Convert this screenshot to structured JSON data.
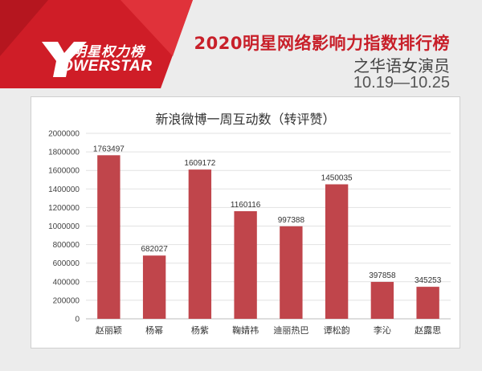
{
  "header": {
    "logo_cn": "明星权力榜",
    "logo_en": "OWERSTAR",
    "title": "2020明星网络影响力指数排行榜",
    "subtitle": "之华语女演员",
    "date_range": "10.19—10.25"
  },
  "colors": {
    "bar": "#c0454b",
    "accent": "#c8202a",
    "banner": "#cf1d27"
  },
  "chart_data": {
    "type": "bar",
    "title": "新浪微博一周互动数（转评赞）",
    "categories": [
      "赵丽颖",
      "杨幂",
      "杨紫",
      "鞠婧祎",
      "迪丽热巴",
      "谭松韵",
      "李沁",
      "赵露思"
    ],
    "values": [
      1763497,
      682027,
      1609172,
      1160116,
      997388,
      1450035,
      397858,
      345253
    ],
    "data_labels": [
      "1763497",
      "682027",
      "1609172",
      "1160116",
      "997388",
      "1450035",
      "397858",
      "345253"
    ],
    "ylim": [
      0,
      2000000
    ],
    "yticks": [
      "0",
      "200000",
      "400000",
      "600000",
      "800000",
      "1000000",
      "1200000",
      "1400000",
      "1600000",
      "1800000",
      "2000000"
    ],
    "grid": true,
    "xlabel": "",
    "ylabel": ""
  }
}
